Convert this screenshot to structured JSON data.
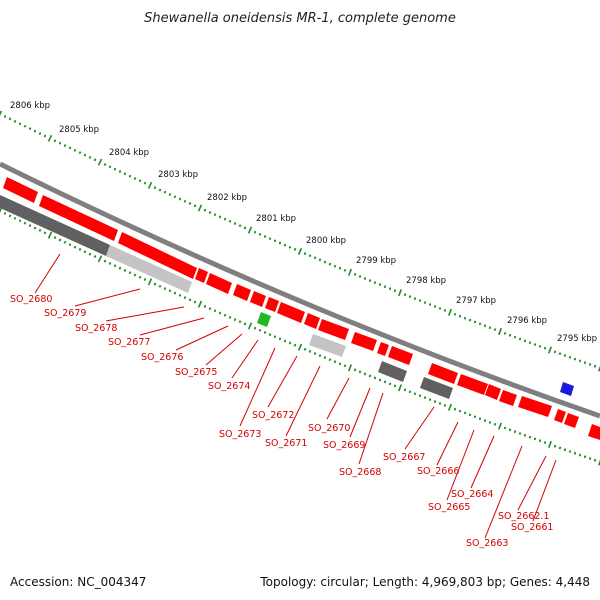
{
  "title": "Shewanella oneidensis MR-1, complete genome",
  "footer": {
    "accession": "Accession: NC_004347",
    "summary": "Topology: circular; Length: 4,969,803 bp; Genes: 4,448"
  },
  "colors": {
    "gene": "#ff0000",
    "label": "#d40000",
    "tick": "#228B22",
    "backbone": "#7f7f7f",
    "gray_dark": "#606060",
    "gray_mid": "#8a8a8a",
    "gray_light": "#c4c4c4",
    "green_feature": "#22b822",
    "blue_feature": "#1a1ae0"
  },
  "kbp_labels": [
    "2806 kbp",
    "2805 kbp",
    "2804 kbp",
    "2803 kbp",
    "2802 kbp",
    "2801 kbp",
    "2800 kbp",
    "2799 kbp",
    "2798 kbp",
    "2797 kbp",
    "2796 kbp",
    "2795 kbp"
  ],
  "gene_labels": [
    "SO_2680",
    "SO_2679",
    "SO_2678",
    "SO_2677",
    "SO_2676",
    "SO_2675",
    "SO_2674",
    "SO_2673",
    "SO_2672",
    "SO_2671",
    "SO_2670",
    "SO_2669",
    "SO_2668",
    "SO_2667",
    "SO_2666",
    "SO_2665",
    "SO_2664",
    "SO_2663",
    "SO_2662.1",
    "SO_2661"
  ]
}
